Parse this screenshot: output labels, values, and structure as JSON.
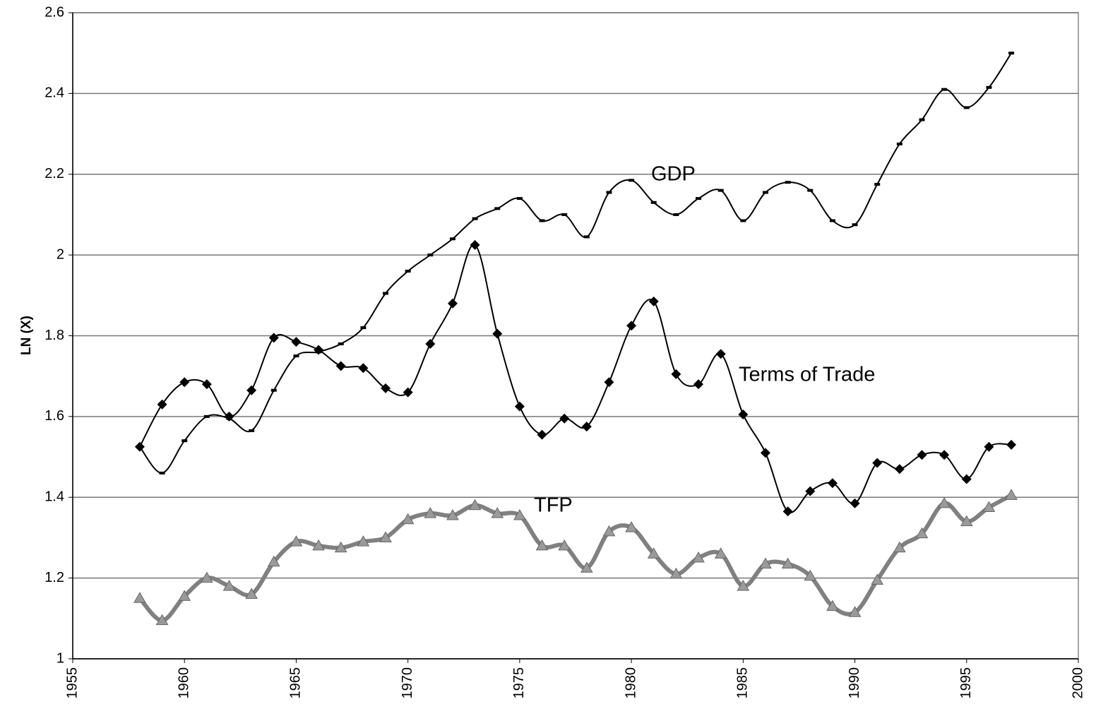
{
  "chart_data": {
    "type": "line",
    "y_label": "LN (X)",
    "x": [
      1958,
      1959,
      1960,
      1961,
      1962,
      1963,
      1964,
      1965,
      1966,
      1967,
      1968,
      1969,
      1970,
      1971,
      1972,
      1973,
      1974,
      1975,
      1976,
      1977,
      1978,
      1979,
      1980,
      1981,
      1982,
      1983,
      1984,
      1985,
      1986,
      1987,
      1988,
      1989,
      1990,
      1991,
      1992,
      1993,
      1994,
      1995,
      1996,
      1997
    ],
    "series": [
      {
        "name": "GDP",
        "color": "#000000",
        "marker": "dash",
        "values": [
          1.525,
          1.46,
          1.54,
          1.6,
          1.595,
          1.565,
          1.665,
          1.75,
          1.76,
          1.78,
          1.82,
          1.905,
          1.96,
          2.0,
          2.04,
          2.09,
          2.115,
          2.14,
          2.085,
          2.1,
          2.045,
          2.155,
          2.185,
          2.13,
          2.1,
          2.14,
          2.16,
          2.085,
          2.155,
          2.18,
          2.16,
          2.085,
          2.075,
          2.175,
          2.275,
          2.335,
          2.41,
          2.365,
          2.415,
          2.5
        ]
      },
      {
        "name": "Terms of Trade",
        "color": "#000000",
        "marker": "diamond",
        "values": [
          1.525,
          1.63,
          1.685,
          1.68,
          1.6,
          1.665,
          1.795,
          1.785,
          1.765,
          1.725,
          1.72,
          1.67,
          1.66,
          1.78,
          1.88,
          2.025,
          1.805,
          1.625,
          1.555,
          1.595,
          1.575,
          1.685,
          1.825,
          1.885,
          1.705,
          1.68,
          1.755,
          1.605,
          1.51,
          1.365,
          1.415,
          1.435,
          1.385,
          1.485,
          1.47,
          1.505,
          1.505,
          1.445,
          1.525,
          1.53
        ]
      },
      {
        "name": "TFP",
        "color": "#808080",
        "marker": "triangle",
        "values": [
          1.15,
          1.095,
          1.155,
          1.2,
          1.18,
          1.16,
          1.24,
          1.29,
          1.28,
          1.275,
          1.29,
          1.3,
          1.345,
          1.36,
          1.355,
          1.38,
          1.36,
          1.355,
          1.28,
          1.28,
          1.225,
          1.315,
          1.325,
          1.26,
          1.21,
          1.25,
          1.26,
          1.18,
          1.235,
          1.235,
          1.205,
          1.13,
          1.115,
          1.195,
          1.275,
          1.31,
          1.385,
          1.34,
          1.375,
          1.405
        ]
      }
    ],
    "xlim": [
      1955,
      2000
    ],
    "xticks": [
      1955,
      1960,
      1965,
      1970,
      1975,
      1980,
      1985,
      1990,
      1995,
      2000
    ],
    "ylim": [
      1,
      2.6
    ],
    "yticks": [
      1,
      1.2,
      1.4,
      1.6,
      1.8,
      2,
      2.2,
      2.4,
      2.6
    ],
    "grid": true
  }
}
